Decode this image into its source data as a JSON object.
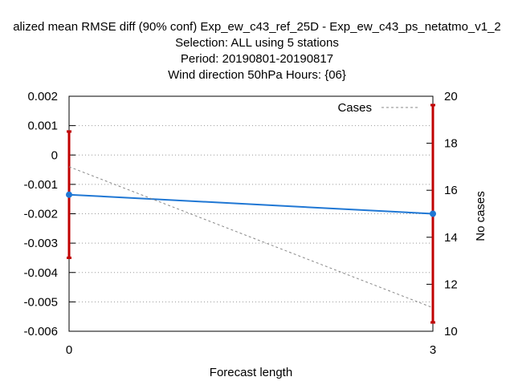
{
  "chart_data": {
    "type": "line",
    "title_lines": [
      "alized mean RMSE diff (90% conf) Exp_ew_c43_ref_25D - Exp_ew_c43_ps_netatmo_v1_2",
      "Selection: ALL using     5 stations",
      "Period: 20190801-20190817",
      "Wind direction 50hPa   Hours: {06}"
    ],
    "xlabel": "Forecast length",
    "y2label": "No cases",
    "x": [
      0,
      3
    ],
    "x_ticks": [
      "0",
      "3"
    ],
    "xlim": [
      0,
      3
    ],
    "ylim": [
      -0.006,
      0.002
    ],
    "y_ticks": [
      "0.002",
      "0.001",
      "0",
      "-0.001",
      "-0.002",
      "-0.003",
      "-0.004",
      "-0.005",
      "-0.006"
    ],
    "y2lim": [
      10,
      20
    ],
    "y2_ticks": [
      "20",
      "18",
      "16",
      "14",
      "12",
      "10"
    ],
    "grid": true,
    "legend_position": "top-right",
    "series": [
      {
        "values": [
          -0.00135,
          -0.002
        ],
        "color": "#1f77d4",
        "error_low": [
          -0.0035,
          -0.0057
        ],
        "error_high": [
          0.0008,
          0.0017
        ],
        "error_color": "#c00000"
      },
      {
        "name": "Cases",
        "values": [
          17,
          11
        ],
        "axis": "right",
        "color": "#888888",
        "dashed": true
      }
    ]
  }
}
